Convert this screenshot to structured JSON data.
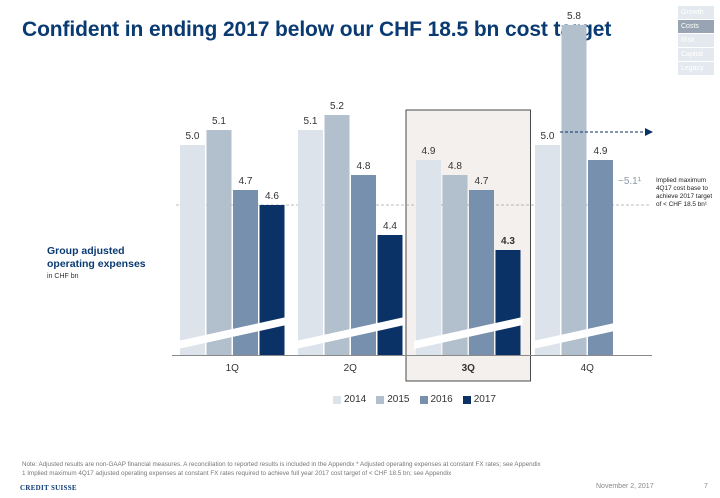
{
  "header": {
    "title": "Confident in ending 2017 below our CHF 18.5 bn cost target"
  },
  "nav": {
    "items": [
      {
        "label": "Growth",
        "active": false
      },
      {
        "label": "Costs",
        "active": true
      },
      {
        "label": "Risk",
        "active": false
      },
      {
        "label": "Capital",
        "active": false
      },
      {
        "label": "Legacy",
        "active": false
      }
    ]
  },
  "side_label": {
    "title": "Group adjusted operating expenses",
    "unit": "in CHF bn"
  },
  "chart_data": {
    "type": "bar",
    "categories": [
      "1Q",
      "2Q",
      "3Q",
      "4Q"
    ],
    "highlight_category": "3Q",
    "series": [
      {
        "name": "2014",
        "color": "#dde3ea",
        "values": [
          5.0,
          5.1,
          4.9,
          5.0
        ]
      },
      {
        "name": "2015",
        "color": "#b2bfcd",
        "values": [
          5.1,
          5.2,
          4.8,
          5.8
        ]
      },
      {
        "name": "2016",
        "color": "#7690ad",
        "values": [
          4.7,
          4.8,
          4.7,
          4.9
        ]
      },
      {
        "name": "2017",
        "color": "#0b3266",
        "values": [
          4.6,
          4.4,
          4.3,
          null
        ]
      }
    ],
    "reference_value": 4.6,
    "target_line": {
      "value": 5.1,
      "label": "~5.1¹"
    },
    "annotation": "Implied maximum 4Q17 cost base to achieve 2017 target of < CHF 18.5 bn¹",
    "axis_break": true,
    "ylabel": "",
    "legend_position": "bottom"
  },
  "footnote": {
    "line1": "Note: Adjusted results are non-GAAP financial measures. A reconciliation to reported results is included in the Appendix   * Adjusted operating expenses at constant FX rates; see Appendix",
    "line2": "1 Implied maximum 4Q17 adjusted operating expenses at constant FX rates required to achieve full year 2017 cost target of < CHF 18.5 bn; see Appendix"
  },
  "footer": {
    "logo": "CREDIT SUISSE",
    "date": "November 2, 2017",
    "page": "7"
  }
}
